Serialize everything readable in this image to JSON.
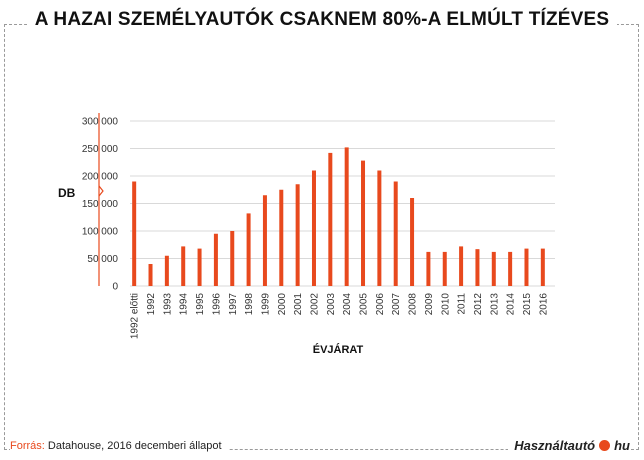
{
  "chart_data": {
    "type": "bar",
    "title": "A HAZAI SZEMÉLYAUTÓK CSAKNEM 80%-A ELMÚLT TÍZÉVES",
    "xlabel": "ÉVJÁRAT",
    "ylabel": "DB",
    "ylim": [
      0,
      300000
    ],
    "yticks": [
      0,
      50000,
      100000,
      150000,
      200000,
      250000,
      300000
    ],
    "ytick_labels": [
      "0",
      "50 000",
      "100 000",
      "150 000",
      "200 000",
      "250 000",
      "300 000"
    ],
    "grid": true,
    "bar_color": "#e8491d",
    "categories": [
      "1992 előtti",
      "1992",
      "1993",
      "1994",
      "1995",
      "1996",
      "1997",
      "1998",
      "1999",
      "2000",
      "2001",
      "2002",
      "2003",
      "2004",
      "2005",
      "2006",
      "2007",
      "2008",
      "2009",
      "2010",
      "2011",
      "2012",
      "2013",
      "2014",
      "2015",
      "2016"
    ],
    "values": [
      190000,
      40000,
      55000,
      72000,
      68000,
      95000,
      100000,
      132000,
      165000,
      175000,
      185000,
      210000,
      242000,
      252000,
      228000,
      210000,
      190000,
      160000,
      62000,
      62000,
      72000,
      67000,
      62000,
      62000,
      68000,
      68000
    ]
  },
  "footer": {
    "source_label": "Forrás:",
    "source_text": " Datahouse, 2016 decemberi állapot",
    "brand_left": "Használtautó",
    "brand_right": "hu"
  },
  "colors": {
    "accent": "#e8491d",
    "grid": "#d9d9d9"
  }
}
